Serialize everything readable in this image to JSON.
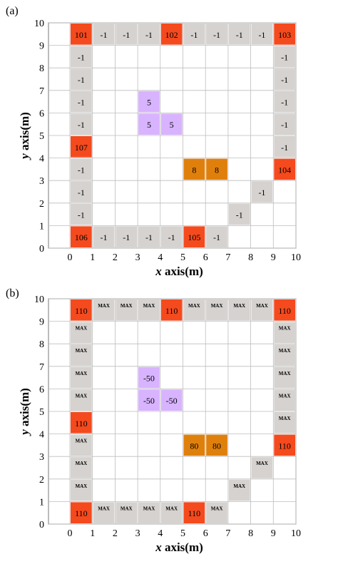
{
  "chart_data": [
    {
      "type": "heatmap",
      "panel_label": "(a)",
      "xlabel": "x axis(m)",
      "ylabel": "y axis(m)",
      "xlim": [
        0,
        10
      ],
      "ylim": [
        0,
        10
      ],
      "xticks": [
        "0",
        "1",
        "2",
        "3",
        "4",
        "5",
        "6",
        "7",
        "8",
        "9",
        "10"
      ],
      "yticks": [
        "0",
        "1",
        "2",
        "3",
        "4",
        "5",
        "6",
        "7",
        "8",
        "9",
        "10"
      ],
      "grid": true,
      "cells": [
        {
          "x": 0,
          "y": 9,
          "label": "101",
          "kind": "red"
        },
        {
          "x": 1,
          "y": 9,
          "label": "-1",
          "kind": "gray"
        },
        {
          "x": 2,
          "y": 9,
          "label": "-1",
          "kind": "gray"
        },
        {
          "x": 3,
          "y": 9,
          "label": "-1",
          "kind": "gray"
        },
        {
          "x": 4,
          "y": 9,
          "label": "102",
          "kind": "red"
        },
        {
          "x": 5,
          "y": 9,
          "label": "-1",
          "kind": "gray"
        },
        {
          "x": 6,
          "y": 9,
          "label": "-1",
          "kind": "gray"
        },
        {
          "x": 7,
          "y": 9,
          "label": "-1",
          "kind": "gray"
        },
        {
          "x": 8,
          "y": 9,
          "label": "-1",
          "kind": "gray"
        },
        {
          "x": 9,
          "y": 9,
          "label": "103",
          "kind": "red"
        },
        {
          "x": 0,
          "y": 8,
          "label": "-1",
          "kind": "gray"
        },
        {
          "x": 9,
          "y": 8,
          "label": "-1",
          "kind": "gray"
        },
        {
          "x": 0,
          "y": 7,
          "label": "-1",
          "kind": "gray"
        },
        {
          "x": 9,
          "y": 7,
          "label": "-1",
          "kind": "gray"
        },
        {
          "x": 0,
          "y": 6,
          "label": "-1",
          "kind": "gray"
        },
        {
          "x": 3,
          "y": 6,
          "label": "5",
          "kind": "purple"
        },
        {
          "x": 9,
          "y": 6,
          "label": "-1",
          "kind": "gray"
        },
        {
          "x": 0,
          "y": 5,
          "label": "-1",
          "kind": "gray"
        },
        {
          "x": 3,
          "y": 5,
          "label": "5",
          "kind": "purple"
        },
        {
          "x": 4,
          "y": 5,
          "label": "5",
          "kind": "purple"
        },
        {
          "x": 9,
          "y": 5,
          "label": "-1",
          "kind": "gray"
        },
        {
          "x": 0,
          "y": 4,
          "label": "107",
          "kind": "red"
        },
        {
          "x": 9,
          "y": 4,
          "label": "-1",
          "kind": "gray"
        },
        {
          "x": 0,
          "y": 3,
          "label": "-1",
          "kind": "gray"
        },
        {
          "x": 5,
          "y": 3,
          "label": "8",
          "kind": "orange"
        },
        {
          "x": 6,
          "y": 3,
          "label": "8",
          "kind": "orange"
        },
        {
          "x": 9,
          "y": 3,
          "label": "104",
          "kind": "red"
        },
        {
          "x": 0,
          "y": 2,
          "label": "-1",
          "kind": "gray"
        },
        {
          "x": 8,
          "y": 2,
          "label": "-1",
          "kind": "gray"
        },
        {
          "x": 0,
          "y": 1,
          "label": "-1",
          "kind": "gray"
        },
        {
          "x": 7,
          "y": 1,
          "label": "-1",
          "kind": "gray"
        },
        {
          "x": 0,
          "y": 0,
          "label": "106",
          "kind": "red"
        },
        {
          "x": 1,
          "y": 0,
          "label": "-1",
          "kind": "gray"
        },
        {
          "x": 2,
          "y": 0,
          "label": "-1",
          "kind": "gray"
        },
        {
          "x": 3,
          "y": 0,
          "label": "-1",
          "kind": "gray"
        },
        {
          "x": 4,
          "y": 0,
          "label": "-1",
          "kind": "gray"
        },
        {
          "x": 5,
          "y": 0,
          "label": "105",
          "kind": "red"
        },
        {
          "x": 6,
          "y": 0,
          "label": "-1",
          "kind": "gray"
        }
      ]
    },
    {
      "type": "heatmap",
      "panel_label": "(b)",
      "xlabel": "x axis(m)",
      "ylabel": "y axis(m)",
      "xlim": [
        0,
        10
      ],
      "ylim": [
        0,
        10
      ],
      "xticks": [
        "0",
        "1",
        "2",
        "3",
        "4",
        "5",
        "6",
        "7",
        "8",
        "9",
        "10"
      ],
      "yticks": [
        "0",
        "1",
        "2",
        "3",
        "4",
        "5",
        "6",
        "7",
        "8",
        "9",
        "10"
      ],
      "grid": true,
      "cells": [
        {
          "x": 0,
          "y": 9,
          "label": "110",
          "kind": "red"
        },
        {
          "x": 1,
          "y": 9,
          "label": "MAX",
          "kind": "gray"
        },
        {
          "x": 2,
          "y": 9,
          "label": "MAX",
          "kind": "gray"
        },
        {
          "x": 3,
          "y": 9,
          "label": "MAX",
          "kind": "gray"
        },
        {
          "x": 4,
          "y": 9,
          "label": "110",
          "kind": "red"
        },
        {
          "x": 5,
          "y": 9,
          "label": "MAX",
          "kind": "gray"
        },
        {
          "x": 6,
          "y": 9,
          "label": "MAX",
          "kind": "gray"
        },
        {
          "x": 7,
          "y": 9,
          "label": "MAX",
          "kind": "gray"
        },
        {
          "x": 8,
          "y": 9,
          "label": "MAX",
          "kind": "gray"
        },
        {
          "x": 9,
          "y": 9,
          "label": "110",
          "kind": "red"
        },
        {
          "x": 0,
          "y": 8,
          "label": "MAX",
          "kind": "gray"
        },
        {
          "x": 9,
          "y": 8,
          "label": "MAX",
          "kind": "gray"
        },
        {
          "x": 0,
          "y": 7,
          "label": "MAX",
          "kind": "gray"
        },
        {
          "x": 9,
          "y": 7,
          "label": "MAX",
          "kind": "gray"
        },
        {
          "x": 0,
          "y": 6,
          "label": "MAX",
          "kind": "gray"
        },
        {
          "x": 3,
          "y": 6,
          "label": "-50",
          "kind": "purple"
        },
        {
          "x": 9,
          "y": 6,
          "label": "MAX",
          "kind": "gray"
        },
        {
          "x": 0,
          "y": 5,
          "label": "MAX",
          "kind": "gray"
        },
        {
          "x": 3,
          "y": 5,
          "label": "-50",
          "kind": "purple"
        },
        {
          "x": 4,
          "y": 5,
          "label": "-50",
          "kind": "purple"
        },
        {
          "x": 9,
          "y": 5,
          "label": "MAX",
          "kind": "gray"
        },
        {
          "x": 0,
          "y": 4,
          "label": "110",
          "kind": "red"
        },
        {
          "x": 9,
          "y": 4,
          "label": "MAX",
          "kind": "gray"
        },
        {
          "x": 0,
          "y": 3,
          "label": "MAX",
          "kind": "gray"
        },
        {
          "x": 5,
          "y": 3,
          "label": "80",
          "kind": "orange"
        },
        {
          "x": 6,
          "y": 3,
          "label": "80",
          "kind": "orange"
        },
        {
          "x": 9,
          "y": 3,
          "label": "110",
          "kind": "red"
        },
        {
          "x": 0,
          "y": 2,
          "label": "MAX",
          "kind": "gray"
        },
        {
          "x": 8,
          "y": 2,
          "label": "MAX",
          "kind": "gray"
        },
        {
          "x": 0,
          "y": 1,
          "label": "MAX",
          "kind": "gray"
        },
        {
          "x": 7,
          "y": 1,
          "label": "MAX",
          "kind": "gray"
        },
        {
          "x": 0,
          "y": 0,
          "label": "110",
          "kind": "red"
        },
        {
          "x": 1,
          "y": 0,
          "label": "MAX",
          "kind": "gray"
        },
        {
          "x": 2,
          "y": 0,
          "label": "MAX",
          "kind": "gray"
        },
        {
          "x": 3,
          "y": 0,
          "label": "MAX",
          "kind": "gray"
        },
        {
          "x": 4,
          "y": 0,
          "label": "MAX",
          "kind": "gray"
        },
        {
          "x": 5,
          "y": 0,
          "label": "110",
          "kind": "red"
        },
        {
          "x": 6,
          "y": 0,
          "label": "MAX",
          "kind": "gray"
        }
      ]
    }
  ],
  "colors": {
    "red": "#f44a1e",
    "gray": "#d5d2cf",
    "purple": "#d8b3ff",
    "orange": "#e0800c",
    "grid": "#bdbdbd",
    "frame": "#7a7a7a"
  }
}
